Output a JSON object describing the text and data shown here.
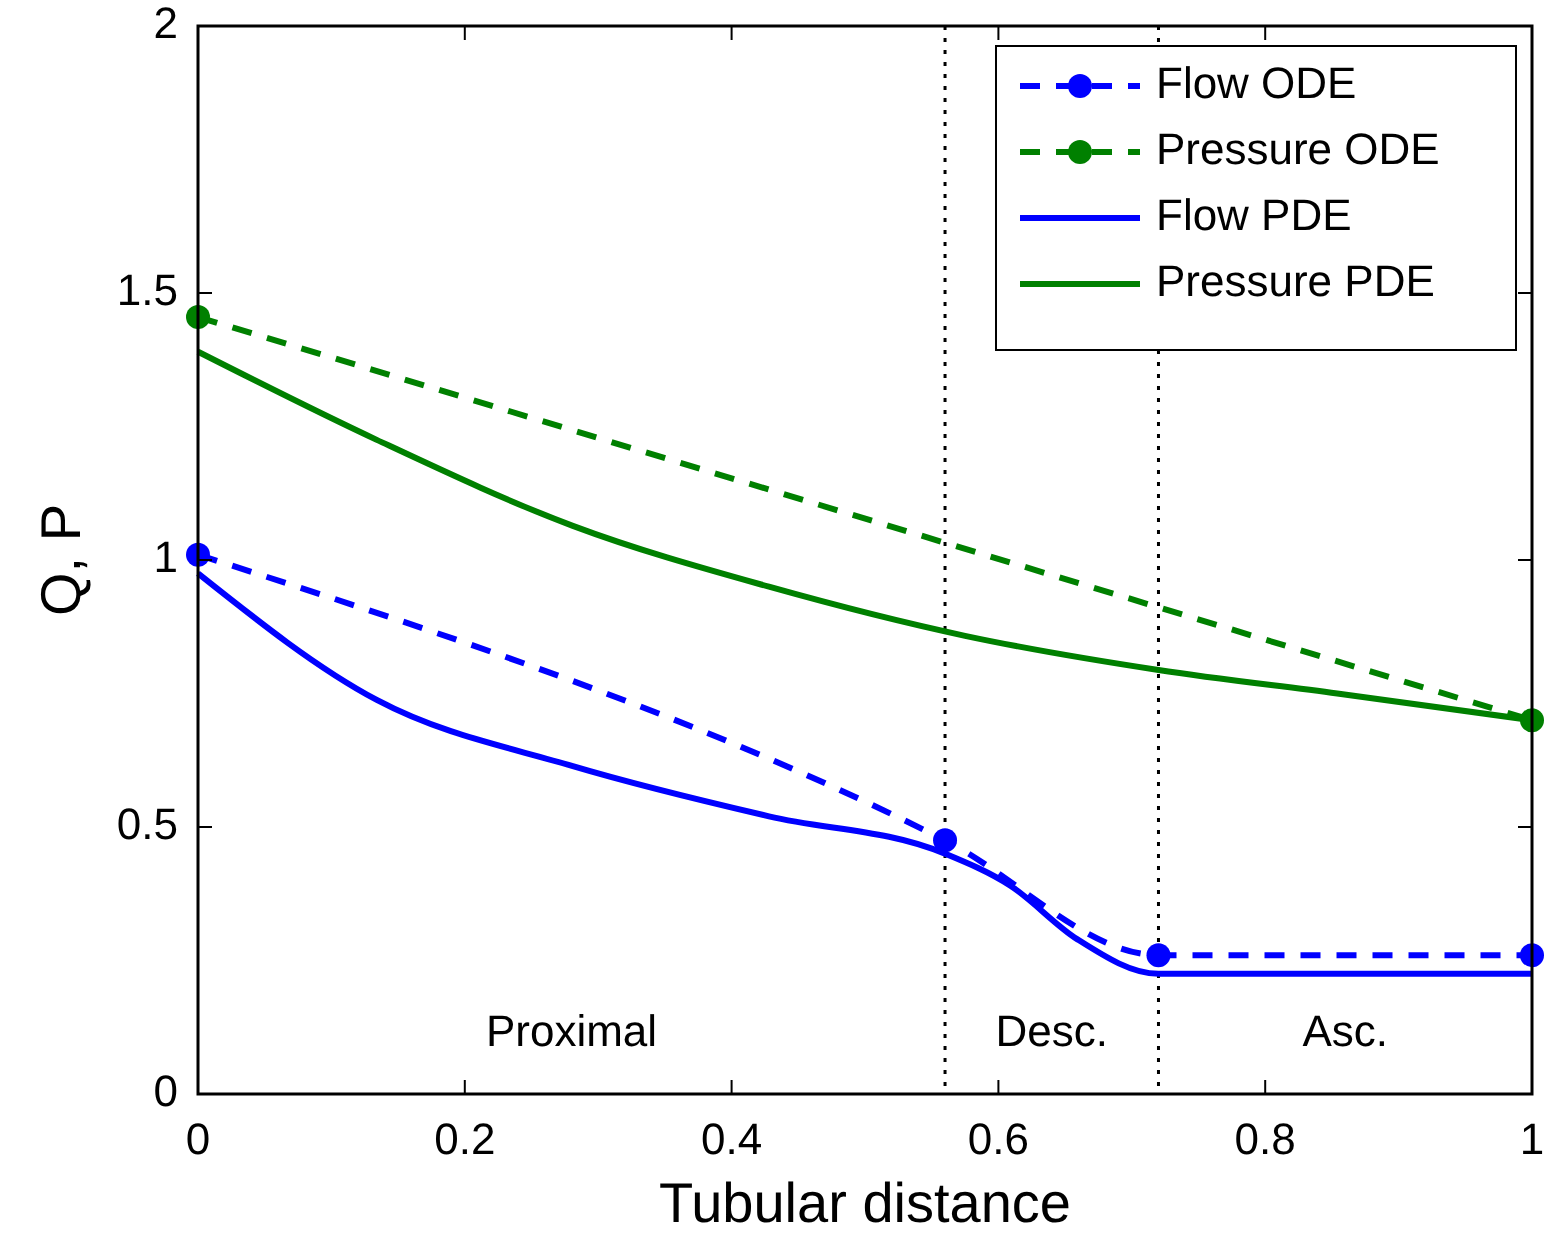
{
  "chart_data": {
    "type": "line",
    "xlabel": "Tubular distance",
    "ylabel": "Q, P",
    "xlim": [
      0,
      1
    ],
    "ylim": [
      0,
      2
    ],
    "xticks": [
      0,
      0.2,
      0.4,
      0.6,
      0.8,
      1
    ],
    "yticks": [
      0,
      0.5,
      1,
      1.5,
      2
    ],
    "grid": false,
    "legend": "top right",
    "series": [
      {
        "name": "Flow ODE",
        "color": "#0000ff",
        "line_style": "dashed",
        "marker": "circle",
        "x": [
          0,
          0.56,
          0.72,
          1
        ],
        "values": [
          1.01,
          0.475,
          0.26,
          0.26
        ]
      },
      {
        "name": "Pressure ODE",
        "color": "#008000",
        "line_style": "dashed",
        "marker": "circle",
        "x": [
          0,
          1
        ],
        "values": [
          1.455,
          0.7
        ]
      },
      {
        "name": "Flow PDE",
        "color": "#0000ff",
        "line_style": "solid",
        "marker": "none",
        "x": [
          0,
          0.134,
          0.281,
          0.428,
          0.56,
          0.609,
          0.659,
          0.72,
          1
        ],
        "values": [
          0.975,
          0.738,
          0.614,
          0.52,
          0.45,
          0.39,
          0.29,
          0.225,
          0.225
        ]
      },
      {
        "name": "Pressure PDE",
        "color": "#008000",
        "line_style": "solid",
        "marker": "none",
        "x": [
          0,
          0.134,
          0.281,
          0.428,
          0.575,
          0.72,
          0.854,
          1
        ],
        "values": [
          1.39,
          1.225,
          1.064,
          0.95,
          0.858,
          0.794,
          0.75,
          0.7
        ]
      }
    ],
    "ref_lines": [
      {
        "axis": "x",
        "value": 0.56,
        "color": "#000000",
        "line_style": "dotted"
      },
      {
        "axis": "x",
        "value": 0.72,
        "color": "#000000",
        "line_style": "dotted"
      }
    ],
    "annotations": [
      "Proximal",
      "Desc.",
      "Asc."
    ]
  }
}
